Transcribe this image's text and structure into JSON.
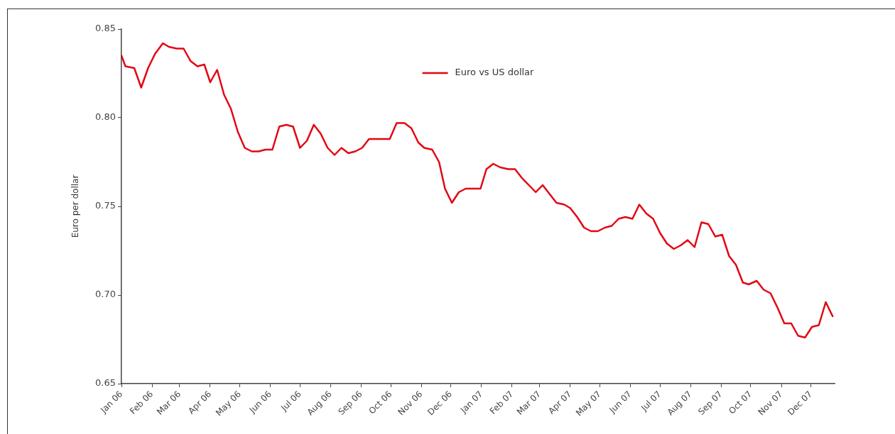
{
  "chart_data": {
    "type": "line",
    "ylabel": "Euro per dollar",
    "legend": "top",
    "grid": false,
    "marker": "none",
    "line_style": "solid",
    "xlim": [
      "2006-01-01",
      "2007-12-25"
    ],
    "xticks": [
      {
        "value": "2006-01-01",
        "label": "Jan 06"
      },
      {
        "value": "2006-02-01",
        "label": "Feb 06"
      },
      {
        "value": "2006-03-01",
        "label": "Mar 06"
      },
      {
        "value": "2006-04-01",
        "label": "Apr 06"
      },
      {
        "value": "2006-05-01",
        "label": "May 06"
      },
      {
        "value": "2006-06-01",
        "label": "Jun 06"
      },
      {
        "value": "2006-07-01",
        "label": "Jul 06"
      },
      {
        "value": "2006-08-01",
        "label": "Aug 06"
      },
      {
        "value": "2006-09-01",
        "label": "Sep 06"
      },
      {
        "value": "2006-10-01",
        "label": "Oct 06"
      },
      {
        "value": "2006-11-01",
        "label": "Nov 06"
      },
      {
        "value": "2006-12-01",
        "label": "Dec 06"
      },
      {
        "value": "2007-01-01",
        "label": "Jan 07"
      },
      {
        "value": "2007-02-01",
        "label": "Feb 07"
      },
      {
        "value": "2007-03-01",
        "label": "Mar 07"
      },
      {
        "value": "2007-04-01",
        "label": "Apr 07"
      },
      {
        "value": "2007-05-01",
        "label": "May 07"
      },
      {
        "value": "2007-06-01",
        "label": "Jun 07"
      },
      {
        "value": "2007-07-01",
        "label": "Jul 07"
      },
      {
        "value": "2007-08-01",
        "label": "Aug 07"
      },
      {
        "value": "2007-09-01",
        "label": "Sep 07"
      },
      {
        "value": "2007-10-01",
        "label": "Oct 07"
      },
      {
        "value": "2007-11-01",
        "label": "Nov 07"
      },
      {
        "value": "2007-12-01",
        "label": "Dec 07"
      }
    ],
    "ylim": [
      0.65,
      0.85
    ],
    "yticks": [
      {
        "value": 0.65,
        "label": "0.65"
      },
      {
        "value": 0.7,
        "label": "0.70"
      },
      {
        "value": 0.75,
        "label": "0.75"
      },
      {
        "value": 0.8,
        "label": "0.80"
      },
      {
        "value": 0.85,
        "label": "0.85"
      }
    ],
    "x": [
      "2006-01-01",
      "2006-01-05",
      "2006-01-14",
      "2006-01-21",
      "2006-01-28",
      "2006-02-04",
      "2006-02-12",
      "2006-02-18",
      "2006-02-26",
      "2006-03-05",
      "2006-03-12",
      "2006-03-19",
      "2006-03-26",
      "2006-04-01",
      "2006-04-08",
      "2006-04-15",
      "2006-04-22",
      "2006-04-29",
      "2006-05-06",
      "2006-05-13",
      "2006-05-20",
      "2006-05-27",
      "2006-06-03",
      "2006-06-10",
      "2006-06-17",
      "2006-06-24",
      "2006-07-01",
      "2006-07-08",
      "2006-07-15",
      "2006-07-22",
      "2006-07-29",
      "2006-08-05",
      "2006-08-12",
      "2006-08-19",
      "2006-08-26",
      "2006-09-02",
      "2006-09-09",
      "2006-09-16",
      "2006-09-30",
      "2006-10-07",
      "2006-10-15",
      "2006-10-22",
      "2006-10-29",
      "2006-11-04",
      "2006-11-12",
      "2006-11-19",
      "2006-11-25",
      "2006-12-02",
      "2006-12-09",
      "2006-12-16",
      "2006-12-31",
      "2007-01-06",
      "2007-01-13",
      "2007-01-20",
      "2007-01-28",
      "2007-02-04",
      "2007-02-11",
      "2007-02-18",
      "2007-02-25",
      "2007-03-04",
      "2007-03-11",
      "2007-03-18",
      "2007-03-26",
      "2007-04-01",
      "2007-04-08",
      "2007-04-15",
      "2007-04-22",
      "2007-04-29",
      "2007-05-06",
      "2007-05-13",
      "2007-05-20",
      "2007-05-27",
      "2007-06-03",
      "2007-06-10",
      "2007-06-17",
      "2007-06-24",
      "2007-07-01",
      "2007-07-08",
      "2007-07-15",
      "2007-07-22",
      "2007-07-29",
      "2007-08-05",
      "2007-08-12",
      "2007-08-19",
      "2007-08-26",
      "2007-09-02",
      "2007-09-09",
      "2007-09-16",
      "2007-09-23",
      "2007-09-29",
      "2007-10-07",
      "2007-10-14",
      "2007-10-21",
      "2007-10-28",
      "2007-11-04",
      "2007-11-11",
      "2007-11-18",
      "2007-11-25",
      "2007-12-02",
      "2007-12-09",
      "2007-12-16",
      "2007-12-23"
    ],
    "series": [
      {
        "name": "Euro vs US dollar",
        "color": "#e30613",
        "values": [
          0.835,
          0.829,
          0.828,
          0.817,
          0.828,
          0.836,
          0.842,
          0.84,
          0.839,
          0.839,
          0.832,
          0.829,
          0.83,
          0.82,
          0.827,
          0.813,
          0.805,
          0.792,
          0.783,
          0.781,
          0.781,
          0.782,
          0.782,
          0.795,
          0.796,
          0.795,
          0.783,
          0.787,
          0.796,
          0.791,
          0.783,
          0.779,
          0.783,
          0.78,
          0.781,
          0.783,
          0.788,
          0.788,
          0.788,
          0.797,
          0.797,
          0.794,
          0.786,
          0.783,
          0.782,
          0.775,
          0.76,
          0.752,
          0.758,
          0.76,
          0.76,
          0.771,
          0.774,
          0.772,
          0.771,
          0.771,
          0.766,
          0.762,
          0.758,
          0.762,
          0.757,
          0.752,
          0.751,
          0.749,
          0.744,
          0.738,
          0.736,
          0.736,
          0.738,
          0.739,
          0.743,
          0.744,
          0.743,
          0.751,
          0.746,
          0.743,
          0.735,
          0.729,
          0.726,
          0.728,
          0.731,
          0.727,
          0.741,
          0.74,
          0.733,
          0.734,
          0.722,
          0.717,
          0.707,
          0.706,
          0.708,
          0.703,
          0.701,
          0.693,
          0.684,
          0.684,
          0.677,
          0.676,
          0.682,
          0.683,
          0.696,
          0.688
        ]
      }
    ]
  }
}
